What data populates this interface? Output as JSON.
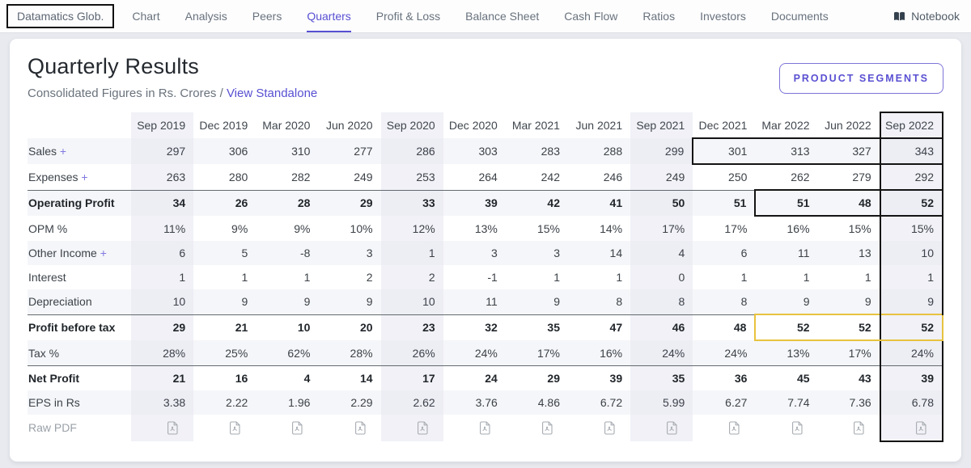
{
  "nav": {
    "company": "Datamatics Glob.",
    "items": [
      {
        "label": "Chart",
        "active": false
      },
      {
        "label": "Analysis",
        "active": false
      },
      {
        "label": "Peers",
        "active": false
      },
      {
        "label": "Quarters",
        "active": true
      },
      {
        "label": "Profit & Loss",
        "active": false
      },
      {
        "label": "Balance Sheet",
        "active": false
      },
      {
        "label": "Cash Flow",
        "active": false
      },
      {
        "label": "Ratios",
        "active": false
      },
      {
        "label": "Investors",
        "active": false
      },
      {
        "label": "Documents",
        "active": false
      }
    ],
    "notebook_label": "Notebook",
    "notebook_icon": "book-icon"
  },
  "page": {
    "title": "Quarterly Results",
    "subtitle": "Consolidated Figures in Rs. Crores /",
    "standalone_link": "View Standalone",
    "segments_button": "PRODUCT SEGMENTS"
  },
  "colors": {
    "accent": "#5850d2",
    "annotation_black": "#141414",
    "annotation_yellow": "#e8c33f"
  },
  "table": {
    "columns": [
      "Sep 2019",
      "Dec 2019",
      "Mar 2020",
      "Jun 2020",
      "Sep 2020",
      "Dec 2020",
      "Mar 2021",
      "Jun 2021",
      "Sep 2021",
      "Dec 2021",
      "Mar 2022",
      "Jun 2022",
      "Sep 2022"
    ],
    "highlight_columns": [
      0,
      4,
      8,
      12
    ],
    "boxed_column": 12,
    "pdf_icon": "pdf-file-icon",
    "rows": [
      {
        "label": "Sales",
        "suffix": "+",
        "expandable": true,
        "values": [
          "297",
          "306",
          "310",
          "277",
          "286",
          "303",
          "283",
          "288",
          "299",
          "301",
          "313",
          "327",
          "343"
        ],
        "box": {
          "type": "black",
          "from": 9,
          "to": 12
        }
      },
      {
        "label": "Expenses",
        "suffix": "+",
        "expandable": true,
        "values": [
          "263",
          "280",
          "282",
          "249",
          "253",
          "264",
          "242",
          "246",
          "249",
          "250",
          "262",
          "279",
          "292"
        ]
      },
      {
        "label": "Operating Profit",
        "bold": true,
        "topline": true,
        "values": [
          "34",
          "26",
          "28",
          "29",
          "33",
          "39",
          "42",
          "41",
          "50",
          "51",
          "51",
          "48",
          "52"
        ],
        "box": {
          "type": "black",
          "from": 10,
          "to": 12
        }
      },
      {
        "label": "OPM %",
        "values": [
          "11%",
          "9%",
          "9%",
          "10%",
          "12%",
          "13%",
          "15%",
          "14%",
          "17%",
          "17%",
          "16%",
          "15%",
          "15%"
        ]
      },
      {
        "label": "Other Income",
        "suffix": "+",
        "expandable": true,
        "values": [
          "6",
          "5",
          "-8",
          "3",
          "1",
          "3",
          "3",
          "14",
          "4",
          "6",
          "11",
          "13",
          "10"
        ]
      },
      {
        "label": "Interest",
        "values": [
          "1",
          "1",
          "1",
          "2",
          "2",
          "-1",
          "1",
          "1",
          "0",
          "1",
          "1",
          "1",
          "1"
        ]
      },
      {
        "label": "Depreciation",
        "values": [
          "10",
          "9",
          "9",
          "9",
          "10",
          "11",
          "9",
          "8",
          "8",
          "8",
          "9",
          "9",
          "9"
        ]
      },
      {
        "label": "Profit before tax",
        "bold": true,
        "topline": true,
        "values": [
          "29",
          "21",
          "10",
          "20",
          "23",
          "32",
          "35",
          "47",
          "46",
          "48",
          "52",
          "52",
          "52"
        ],
        "box": {
          "type": "yellow",
          "from": 10,
          "to": 12
        }
      },
      {
        "label": "Tax %",
        "values": [
          "28%",
          "25%",
          "62%",
          "28%",
          "26%",
          "24%",
          "17%",
          "16%",
          "24%",
          "24%",
          "13%",
          "17%",
          "24%"
        ]
      },
      {
        "label": "Net Profit",
        "bold": true,
        "topline": true,
        "values": [
          "21",
          "16",
          "4",
          "14",
          "17",
          "24",
          "29",
          "39",
          "35",
          "36",
          "45",
          "43",
          "39"
        ]
      },
      {
        "label": "EPS in Rs",
        "values": [
          "3.38",
          "2.22",
          "1.96",
          "2.29",
          "2.62",
          "3.76",
          "4.86",
          "6.72",
          "5.99",
          "6.27",
          "7.74",
          "7.36",
          "6.78"
        ]
      },
      {
        "label": "Raw PDF",
        "pdf": true
      }
    ]
  }
}
